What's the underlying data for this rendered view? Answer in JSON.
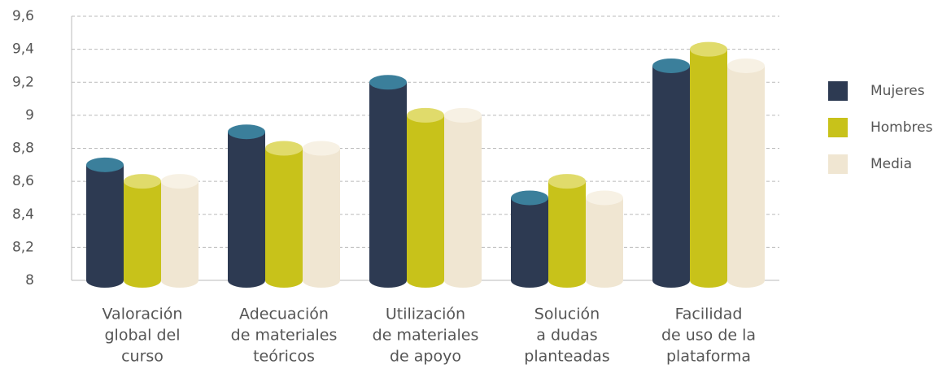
{
  "chart_data": {
    "type": "bar",
    "categories": [
      [
        "Valoración",
        "global del",
        "curso"
      ],
      [
        "Adecuación",
        "de materiales",
        "teóricos"
      ],
      [
        "Utilización",
        "de materiales",
        "de apoyo"
      ],
      [
        "Solución",
        "a dudas",
        "planteadas"
      ],
      [
        "Facilidad",
        "de uso de la",
        "plataforma"
      ]
    ],
    "series": [
      {
        "name": "Mujeres",
        "color": "#2d3a52",
        "top_color": "#3b7f9b",
        "values": [
          8.7,
          8.9,
          9.2,
          8.5,
          9.3
        ]
      },
      {
        "name": "Hombres",
        "color": "#c8c21a",
        "top_color": "#e0db6b",
        "values": [
          8.6,
          8.8,
          9.0,
          8.6,
          9.4
        ]
      },
      {
        "name": "Media",
        "color": "#f0e6d2",
        "top_color": "#f7f1e4",
        "values": [
          8.6,
          8.8,
          9.0,
          8.5,
          9.3
        ]
      }
    ],
    "ylim": [
      8,
      9.6
    ],
    "yticks": [
      8,
      {
        "value": 8.2,
        "label": "8,2"
      },
      {
        "value": 8.4,
        "label": "8,4"
      },
      {
        "value": 8.6,
        "label": "8,6"
      },
      {
        "value": 8.8,
        "label": "8,8"
      },
      9,
      {
        "value": 9.2,
        "label": "9,2"
      },
      {
        "value": 9.4,
        "label": "9,4"
      },
      {
        "value": 9.6,
        "label": "9,6"
      }
    ],
    "grid": true,
    "legend": "right"
  }
}
